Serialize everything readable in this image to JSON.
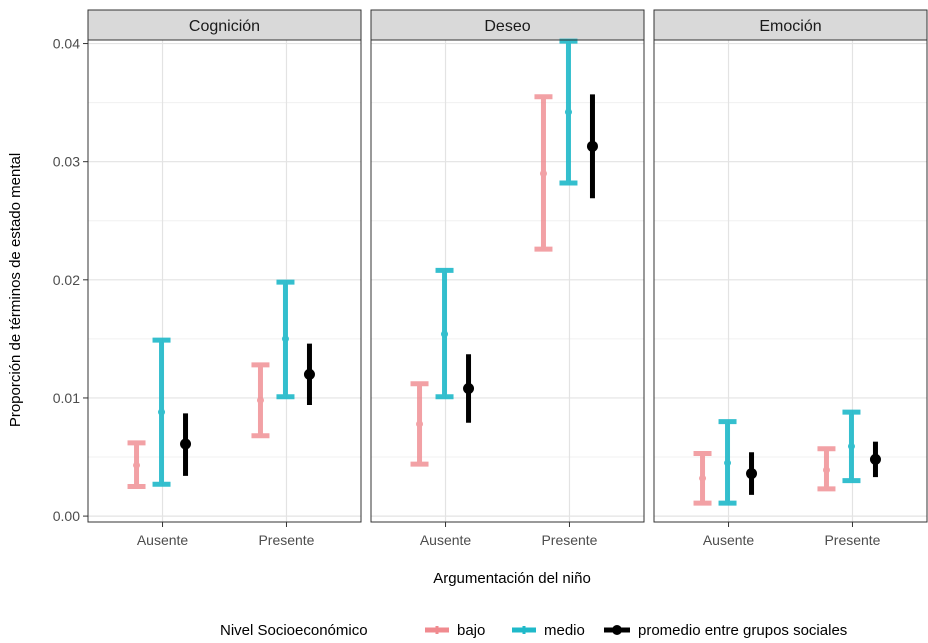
{
  "chart_data": {
    "type": "errorbar",
    "ylabel": "Proporción de términos de estado mental",
    "xlabel": "Argumentación del niño",
    "ylim": [
      -0.0005,
      0.0403
    ],
    "yticks": [
      0.0,
      0.01,
      0.02,
      0.03,
      0.04
    ],
    "ytick_labels": [
      "0.00",
      "0.01",
      "0.02",
      "0.03",
      "0.04"
    ],
    "categories": [
      "Ausente",
      "Presente"
    ],
    "legend": {
      "title": "Nivel Socioeconómico",
      "position": "bottom",
      "entries": [
        {
          "key": "bajo",
          "label": "bajo",
          "color": "#f08a8f"
        },
        {
          "key": "medio",
          "label": "medio",
          "color": "#1fb9c9"
        },
        {
          "key": "promedio",
          "label": "promedio entre grupos sociales",
          "color": "#000000"
        }
      ]
    },
    "grid": true,
    "panels": [
      {
        "name": "Cognición",
        "series": [
          {
            "key": "bajo",
            "points": [
              {
                "x": "Ausente",
                "y": 0.0043,
                "low": 0.0025,
                "high": 0.0062
              },
              {
                "x": "Presente",
                "y": 0.0098,
                "low": 0.0068,
                "high": 0.0128
              }
            ]
          },
          {
            "key": "medio",
            "points": [
              {
                "x": "Ausente",
                "y": 0.0088,
                "low": 0.0027,
                "high": 0.0149
              },
              {
                "x": "Presente",
                "y": 0.015,
                "low": 0.0101,
                "high": 0.0198
              }
            ]
          },
          {
            "key": "promedio",
            "points": [
              {
                "x": "Ausente",
                "y": 0.0061,
                "low": 0.0034,
                "high": 0.0087
              },
              {
                "x": "Presente",
                "y": 0.012,
                "low": 0.0094,
                "high": 0.0146
              }
            ]
          }
        ]
      },
      {
        "name": "Deseo",
        "series": [
          {
            "key": "bajo",
            "points": [
              {
                "x": "Ausente",
                "y": 0.0078,
                "low": 0.0044,
                "high": 0.0112
              },
              {
                "x": "Presente",
                "y": 0.029,
                "low": 0.0226,
                "high": 0.0355
              }
            ]
          },
          {
            "key": "medio",
            "points": [
              {
                "x": "Ausente",
                "y": 0.0154,
                "low": 0.0101,
                "high": 0.0208
              },
              {
                "x": "Presente",
                "y": 0.0342,
                "low": 0.0282,
                "high": 0.0402
              }
            ]
          },
          {
            "key": "promedio",
            "points": [
              {
                "x": "Ausente",
                "y": 0.0108,
                "low": 0.0079,
                "high": 0.0137
              },
              {
                "x": "Presente",
                "y": 0.0313,
                "low": 0.0269,
                "high": 0.0357
              }
            ]
          }
        ]
      },
      {
        "name": "Emoción",
        "series": [
          {
            "key": "bajo",
            "points": [
              {
                "x": "Ausente",
                "y": 0.0032,
                "low": 0.0011,
                "high": 0.0053
              },
              {
                "x": "Presente",
                "y": 0.0039,
                "low": 0.0023,
                "high": 0.0057
              }
            ]
          },
          {
            "key": "medio",
            "points": [
              {
                "x": "Ausente",
                "y": 0.0045,
                "low": 0.0011,
                "high": 0.008
              },
              {
                "x": "Presente",
                "y": 0.0059,
                "low": 0.003,
                "high": 0.0088
              }
            ]
          },
          {
            "key": "promedio",
            "points": [
              {
                "x": "Ausente",
                "y": 0.0036,
                "low": 0.0018,
                "high": 0.0054
              },
              {
                "x": "Presente",
                "y": 0.0048,
                "low": 0.0033,
                "high": 0.0063
              }
            ]
          }
        ]
      }
    ]
  }
}
